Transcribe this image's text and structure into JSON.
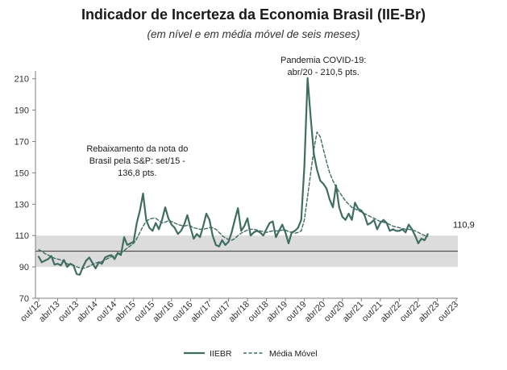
{
  "chart_data": {
    "type": "line",
    "title": "Indicador de Incerteza da Economia Brasil (IIE-Br)",
    "subtitle": "(em nível e em média móvel de seis meses)",
    "ylim": [
      70,
      215
    ],
    "yticks": [
      70,
      90,
      110,
      130,
      150,
      170,
      190,
      210
    ],
    "xticks": [
      "out/12",
      "abr/13",
      "out/13",
      "abr/14",
      "out/14",
      "abr/15",
      "out/15",
      "abr/16",
      "out/16",
      "abr/17",
      "out/17",
      "abr/18",
      "out/18",
      "abr/19",
      "out/19",
      "abr/20",
      "out/20",
      "abr/21",
      "out/21",
      "abr/22",
      "out/22",
      "abr/23",
      "out/23"
    ],
    "x_start": "2012-10",
    "x_end": "2023-10",
    "band": [
      90,
      110
    ],
    "reference_line": 100,
    "colors": {
      "iiebr": "#3f6d62",
      "media_movel": "#3f6d62",
      "band": "#dcdcdc",
      "reference": "#333333"
    },
    "series": [
      {
        "name": "IIEBR",
        "style": "solid",
        "values": [
          96.5,
          93.0,
          94.0,
          95.0,
          97.0,
          91.5,
          92.0,
          91.0,
          94.5,
          90.0,
          92.0,
          91.0,
          85.5,
          85.0,
          90.0,
          94.0,
          96.0,
          92.5,
          89.0,
          93.0,
          92.0,
          96.0,
          97.0,
          97.5,
          95.0,
          99.0,
          97.5,
          109.0,
          104.0,
          105.0,
          106.0,
          118.0,
          126.0,
          136.8,
          120.0,
          115.0,
          113.0,
          118.0,
          114.0,
          120.0,
          128.0,
          121.0,
          117.0,
          115.0,
          111.0,
          113.0,
          117.0,
          123.0,
          115.0,
          108.0,
          111.0,
          109.0,
          116.0,
          124.0,
          120.0,
          110.0,
          104.0,
          103.0,
          107.0,
          104.0,
          106.0,
          112.0,
          120.0,
          127.5,
          113.0,
          116.0,
          121.0,
          110.0,
          112.0,
          113.0,
          112.0,
          110.0,
          114.0,
          118.0,
          119.0,
          109.0,
          113.0,
          117.0,
          112.0,
          105.0,
          112.0,
          113.0,
          115.0,
          120.0,
          154.0,
          210.5,
          185.0,
          162.0,
          152.0,
          145.0,
          143.0,
          140.0,
          133.0,
          128.0,
          142.0,
          128.0,
          122.0,
          120.0,
          124.0,
          120.0,
          131.0,
          127.0,
          126.0,
          123.0,
          117.0,
          118.0,
          120.0,
          114.0,
          118.0,
          120.0,
          118.0,
          113.0,
          114.0,
          113.0,
          113.0,
          114.0,
          112.0,
          117.0,
          114.0,
          110.0,
          105.0,
          108.0,
          107.0,
          110.9
        ]
      },
      {
        "name": "Média Móvel",
        "style": "dashed",
        "values": [
          101.0,
          100.0,
          98.5,
          97.5,
          96.5,
          95.5,
          95.0,
          94.5,
          93.5,
          92.0,
          91.5,
          91.0,
          90.0,
          89.5,
          89.0,
          89.5,
          90.5,
          91.5,
          92.5,
          93.0,
          93.5,
          94.5,
          95.5,
          96.5,
          97.0,
          98.0,
          99.0,
          100.5,
          102.0,
          103.5,
          105.0,
          108.0,
          112.0,
          116.0,
          119.0,
          120.5,
          121.0,
          121.0,
          119.5,
          118.0,
          118.5,
          119.5,
          119.0,
          118.0,
          117.0,
          116.5,
          116.0,
          116.5,
          116.0,
          115.0,
          114.5,
          114.0,
          114.0,
          114.5,
          115.0,
          115.0,
          114.0,
          112.0,
          110.0,
          108.5,
          107.5,
          107.0,
          108.0,
          110.0,
          111.5,
          112.5,
          113.5,
          114.0,
          114.0,
          113.5,
          113.0,
          112.5,
          112.0,
          112.5,
          113.0,
          113.0,
          113.0,
          113.5,
          113.5,
          112.5,
          112.0,
          111.5,
          112.0,
          113.0,
          120.0,
          135.0,
          150.0,
          165.0,
          176.0,
          173.0,
          165.0,
          157.0,
          150.0,
          145.0,
          141.0,
          138.0,
          135.0,
          132.0,
          130.0,
          128.0,
          127.0,
          126.0,
          125.0,
          124.0,
          123.0,
          122.0,
          121.0,
          120.0,
          119.0,
          118.5,
          118.0,
          117.0,
          116.0,
          115.5,
          115.0,
          114.5,
          114.0,
          114.0,
          113.5,
          113.0,
          112.0,
          111.0,
          110.0,
          109.5
        ]
      }
    ],
    "annotations": [
      {
        "lines": [
          "Rebaixamento da nota do",
          "Brasil pela S&P: set/15 -",
          "136,8 pts."
        ],
        "anchor_value": 136.8,
        "anchor_date": "2015-09"
      },
      {
        "lines": [
          "Pandemia COVID-19:",
          "abr/20 - 210,5 pts."
        ],
        "anchor_value": 210.5,
        "anchor_date": "2020-04"
      },
      {
        "lines": [
          "110,9"
        ],
        "anchor_value": 110.9,
        "anchor_date": "2023-10"
      }
    ],
    "legend": {
      "position": "bottom-center"
    }
  }
}
